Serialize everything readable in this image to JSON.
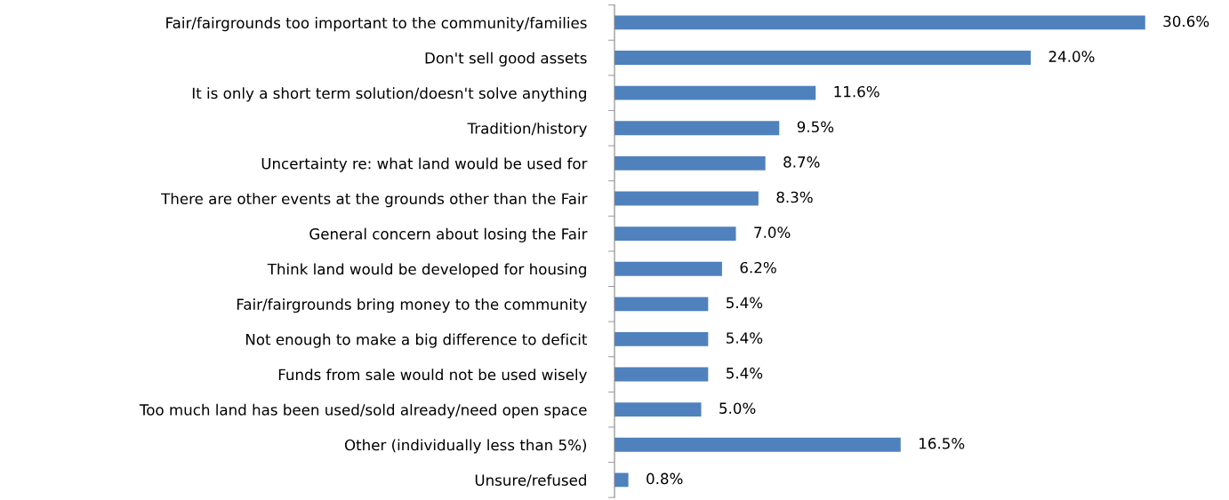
{
  "chart_data": {
    "type": "bar",
    "orientation": "horizontal",
    "color": "#4f81bd",
    "categories": [
      "Fair/fairgrounds too important to the community/families",
      "Don't sell good assets",
      "It is only a short term solution/doesn't solve anything",
      "Tradition/history",
      "Uncertainty re: what land would be used for",
      "There are other events at the grounds other than the Fair",
      "General concern about losing the Fair",
      "Think land would be developed for housing",
      "Fair/fairgrounds bring money to the community",
      "Not enough to make a big difference to deficit",
      "Funds from sale would not be used wisely",
      "Too much land has been used/sold already/need open space",
      "Other (individually less than 5%)",
      "Unsure/refused"
    ],
    "values": [
      30.6,
      24.0,
      11.6,
      9.5,
      8.7,
      8.3,
      7.0,
      6.2,
      5.4,
      5.4,
      5.4,
      5.0,
      16.5,
      0.8
    ],
    "value_labels": [
      "30.6%",
      "24.0%",
      "11.6%",
      "9.5%",
      "8.7%",
      "8.3%",
      "7.0%",
      "6.2%",
      "5.4%",
      "5.4%",
      "5.4%",
      "5.0%",
      "16.5%",
      "0.8%"
    ],
    "tick_labels": "y",
    "grid": false,
    "legend": false
  }
}
